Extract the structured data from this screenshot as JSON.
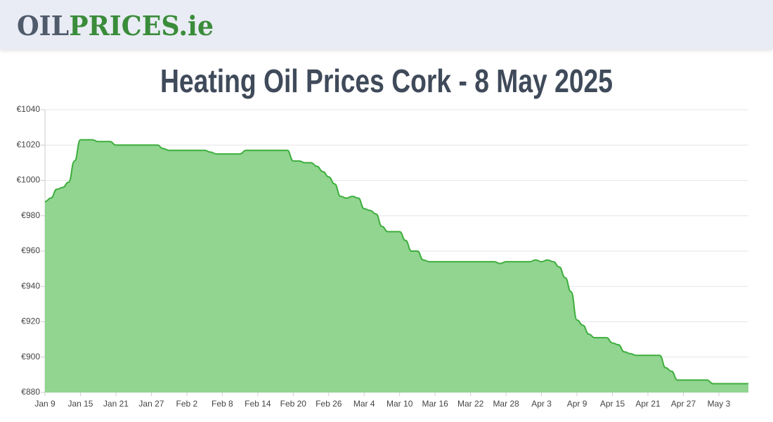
{
  "header": {
    "logo_part1": "OIL",
    "logo_part2": "PRICES.ie"
  },
  "chart_data": {
    "type": "area",
    "title": "Heating Oil Prices Cork - 8 May 2025",
    "categories": [
      "Jan 9",
      null,
      null,
      null,
      null,
      null,
      "Jan 15",
      null,
      null,
      null,
      null,
      null,
      "Jan 21",
      null,
      null,
      null,
      null,
      null,
      "Jan 27",
      null,
      null,
      null,
      null,
      null,
      "Feb 2",
      null,
      null,
      null,
      null,
      null,
      "Feb 8",
      null,
      null,
      null,
      null,
      null,
      "Feb 14",
      null,
      null,
      null,
      null,
      null,
      "Feb 20",
      null,
      null,
      null,
      null,
      null,
      "Feb 26",
      null,
      null,
      null,
      null,
      null,
      "Mar 4",
      null,
      null,
      null,
      null,
      null,
      "Mar 10",
      null,
      null,
      null,
      null,
      null,
      "Mar 16",
      null,
      null,
      null,
      null,
      null,
      "Mar 22",
      null,
      null,
      null,
      null,
      null,
      "Mar 28",
      null,
      null,
      null,
      null,
      null,
      "Apr 3",
      null,
      null,
      null,
      null,
      null,
      "Apr 9",
      null,
      null,
      null,
      null,
      null,
      "Apr 15",
      null,
      null,
      null,
      null,
      null,
      "Apr 21",
      null,
      null,
      null,
      null,
      null,
      "Apr 27",
      null,
      null,
      null,
      null,
      null,
      "May 3",
      null,
      null,
      null,
      null,
      null
    ],
    "values": [
      988,
      990,
      995,
      996,
      999,
      1011,
      1023,
      1023,
      1023,
      1022,
      1022,
      1022,
      1020,
      1020,
      1020,
      1020,
      1020,
      1020,
      1020,
      1020,
      1018,
      1017,
      1017,
      1017,
      1017,
      1017,
      1017,
      1017,
      1016,
      1015,
      1015,
      1015,
      1015,
      1015,
      1017,
      1017,
      1017,
      1017,
      1017,
      1017,
      1017,
      1017,
      1011,
      1011,
      1010,
      1010,
      1008,
      1005,
      1002,
      998,
      991,
      990,
      991,
      990,
      984,
      983,
      981,
      974,
      971,
      971,
      971,
      966,
      960,
      960,
      955,
      954,
      954,
      954,
      954,
      954,
      954,
      954,
      954,
      954,
      954,
      954,
      954,
      953,
      954,
      954,
      954,
      954,
      954,
      955,
      954,
      955,
      954,
      951,
      945,
      937,
      921,
      918,
      913,
      911,
      911,
      911,
      908,
      907,
      903,
      902,
      901,
      901,
      901,
      901,
      901,
      894,
      892,
      887,
      887,
      887,
      887,
      887,
      887,
      885,
      885,
      885,
      885,
      885,
      885,
      885
    ],
    "color": "#3dae3d",
    "fill": "#91d591",
    "ylim": [
      880,
      1040
    ],
    "yticks": [
      {
        "value": 880,
        "label": "€880"
      },
      {
        "value": 900,
        "label": "€900"
      },
      {
        "value": 920,
        "label": "€920"
      },
      {
        "value": 940,
        "label": "€940"
      },
      {
        "value": 960,
        "label": "€960"
      },
      {
        "value": 980,
        "label": "€980"
      },
      {
        "value": 1000,
        "label": "€1000"
      },
      {
        "value": 1020,
        "label": "€1020"
      },
      {
        "value": 1040,
        "label": "€1040"
      }
    ],
    "grid": true
  }
}
